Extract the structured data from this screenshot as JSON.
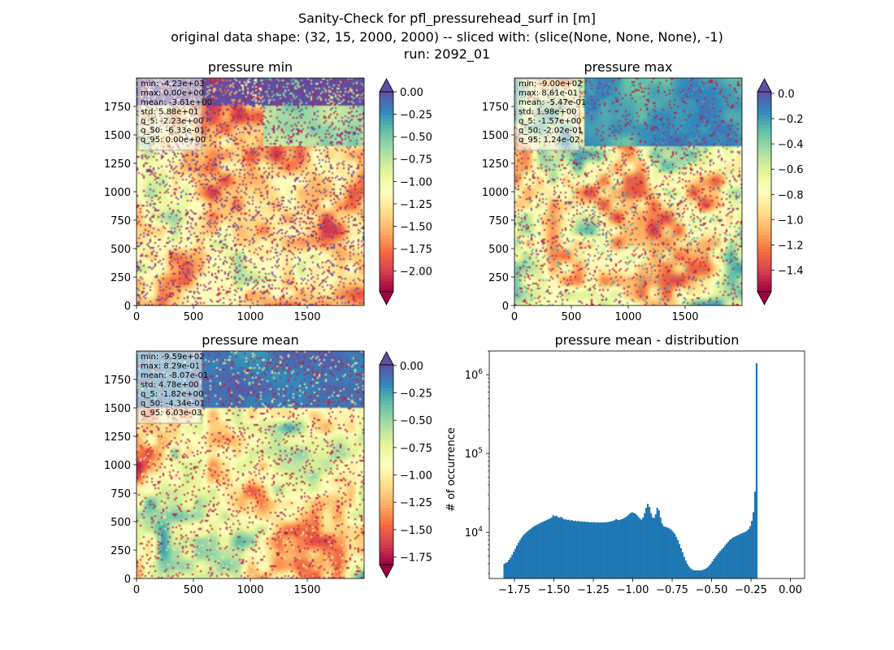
{
  "figure": {
    "title_lines": [
      "Sanity-Check for pfl_pressurehead_surf in [m]",
      "original data shape: (32, 15, 2000, 2000) -- sliced with: (slice(None, None, None), -1)",
      "run: 2092_01"
    ]
  },
  "chart_data": [
    {
      "type": "heatmap",
      "title": "pressure min",
      "colormap": "Spectral",
      "x_ticks": [
        0,
        500,
        1000,
        1500
      ],
      "y_ticks": [
        0,
        250,
        500,
        750,
        1000,
        1250,
        1500,
        1750
      ],
      "xlim": [
        0,
        2000
      ],
      "ylim": [
        0,
        2000
      ],
      "colorbar": {
        "min": -2.23,
        "max": 0.0,
        "ticks": [
          "0.00",
          "-0.25",
          "-0.50",
          "-0.75",
          "-1.00",
          "-1.25",
          "-1.50",
          "-1.75",
          "-2.00"
        ],
        "tick_values": [
          0,
          -0.25,
          -0.5,
          -0.75,
          -1.0,
          -1.25,
          -1.5,
          -1.75,
          -2.0
        ],
        "extend_top": true,
        "extend_bottom": true
      },
      "stats": [
        "min: -4.23e+03",
        "max: 0.00e+00",
        "mean: -3.61e+00",
        "std: 5.88e+01",
        "q_5: -2.23e+00",
        "q_50: -6.33e-01",
        "q_95: 0.00e+00"
      ]
    },
    {
      "type": "heatmap",
      "title": "pressure max",
      "colormap": "Spectral",
      "x_ticks": [
        0,
        500,
        1000,
        1500
      ],
      "y_ticks": [
        0,
        250,
        500,
        750,
        1000,
        1250,
        1500,
        1750
      ],
      "xlim": [
        0,
        2000
      ],
      "ylim": [
        0,
        2000
      ],
      "colorbar": {
        "min": -1.57,
        "max": 0.0124,
        "ticks": [
          "0.0",
          "-0.2",
          "-0.4",
          "-0.6",
          "-0.8",
          "-1.0",
          "-1.2",
          "-1.4"
        ],
        "tick_values": [
          0,
          -0.2,
          -0.4,
          -0.6,
          -0.8,
          -1.0,
          -1.2,
          -1.4
        ],
        "extend_top": true,
        "extend_bottom": true
      },
      "stats": [
        "min: -9.00e+02",
        "max: 8.61e-01",
        "mean: -5.47e-01",
        "std: 1.98e+00",
        "q_5: -1.57e+00",
        "q_50: -2.02e-01",
        "q_95: 1.24e-02"
      ]
    },
    {
      "type": "heatmap",
      "title": "pressure mean",
      "colormap": "Spectral",
      "x_ticks": [
        0,
        500,
        1000,
        1500
      ],
      "y_ticks": [
        0,
        250,
        500,
        750,
        1000,
        1250,
        1500,
        1750
      ],
      "xlim": [
        0,
        2000
      ],
      "ylim": [
        0,
        2000
      ],
      "colorbar": {
        "min": -1.82,
        "max": 0.006,
        "ticks": [
          "0.00",
          "-0.25",
          "-0.50",
          "-0.75",
          "-1.00",
          "-1.25",
          "-1.50",
          "-1.75"
        ],
        "tick_values": [
          0,
          -0.25,
          -0.5,
          -0.75,
          -1.0,
          -1.25,
          -1.5,
          -1.75
        ],
        "extend_top": true,
        "extend_bottom": true
      },
      "stats": [
        "min: -9.59e+02",
        "max: 8.29e-01",
        "mean: -8.07e-01",
        "std: 4.78e+00",
        "q_5: -1.82e+00",
        "q_50: -4.34e-01",
        "q_95: 6.03e-03"
      ]
    },
    {
      "type": "bar",
      "title": "pressure mean - distribution",
      "ylabel": "# of occurrence",
      "yscale": "log",
      "xlim": [
        -1.91,
        0.09
      ],
      "ylim": [
        2600,
        2000000
      ],
      "x_ticks": [
        -1.75,
        -1.5,
        -1.25,
        -1.0,
        -0.75,
        -0.5,
        -0.25,
        0.0
      ],
      "x_tick_labels": [
        "−1.75",
        "−1.50",
        "−1.25",
        "−1.00",
        "−0.75",
        "−0.50",
        "−0.25",
        "0.00"
      ],
      "y_ticks": [
        10000,
        100000,
        1000000
      ],
      "y_tick_labels": [
        {
          "base": "10",
          "exp": "4"
        },
        {
          "base": "10",
          "exp": "5"
        },
        {
          "base": "10",
          "exp": "6"
        }
      ],
      "bar_color": "#1f77b4",
      "bin_width": 0.01,
      "x_start": -1.82,
      "counts": [
        4000,
        4100,
        4200,
        4500,
        4800,
        5200,
        5700,
        6200,
        6800,
        7400,
        8000,
        8600,
        9200,
        9600,
        10000,
        10400,
        10800,
        11200,
        11600,
        12000,
        12300,
        12600,
        12900,
        13200,
        13500,
        13800,
        14100,
        14400,
        14700,
        15000,
        15500,
        16500,
        16000,
        16300,
        15600,
        15400,
        15700,
        15200,
        14600,
        14700,
        14300,
        14500,
        14100,
        14300,
        13900,
        14100,
        13800,
        14000,
        13700,
        13800,
        13600,
        13700,
        13500,
        13600,
        13400,
        13500,
        13400,
        13500,
        13300,
        13400,
        13300,
        13400,
        13300,
        13400,
        13400,
        13500,
        13500,
        13700,
        13800,
        14000,
        14300,
        14800,
        14400,
        14300,
        14600,
        14800,
        15200,
        15600,
        16200,
        16900,
        17600,
        18000,
        17700,
        17300,
        16600,
        15700,
        15000,
        14500,
        15400,
        17500,
        20500,
        23000,
        21000,
        17500,
        15500,
        15200,
        17000,
        20500,
        19000,
        15500,
        13000,
        12000,
        11800,
        11600,
        11400,
        11100,
        10700,
        10200,
        9600,
        8800,
        8000,
        7100,
        6300,
        5600,
        4900,
        4400,
        4000,
        3700,
        3500,
        3400,
        3300,
        3300,
        3300,
        3300,
        3300,
        3300,
        3350,
        3400,
        3500,
        3600,
        3800,
        4000,
        4300,
        4600,
        4900,
        5200,
        5500,
        5800,
        6100,
        6400,
        6800,
        7200,
        7600,
        8000,
        8300,
        8600,
        8800,
        9000,
        9200,
        9400,
        9600,
        9800,
        10000,
        10200,
        10500,
        11000,
        12000,
        14000,
        18000,
        33000,
        1400000
      ]
    }
  ]
}
